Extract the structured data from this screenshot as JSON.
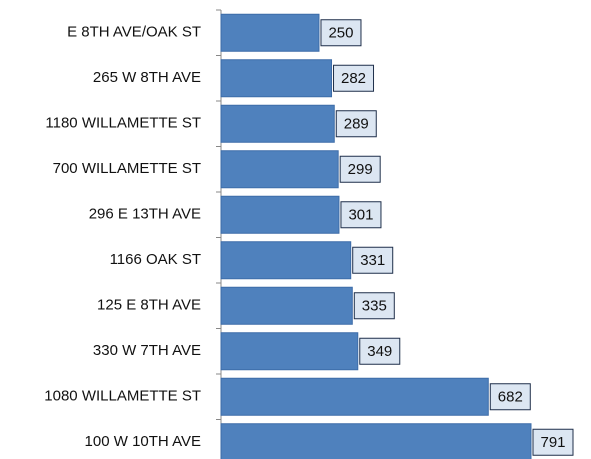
{
  "chart_data": {
    "type": "bar",
    "orientation": "horizontal",
    "categories": [
      "E 8TH AVE/OAK ST",
      "265 W 8TH AVE",
      "1180 WILLAMETTE ST",
      "700 WILLAMETTE ST",
      "296 E 13TH AVE",
      "1166 OAK ST",
      "125 E 8TH AVE",
      "330 W 7TH AVE",
      "1080 WILLAMETTE ST",
      "100 W 10TH AVE"
    ],
    "values": [
      250,
      282,
      289,
      299,
      301,
      331,
      335,
      349,
      682,
      791
    ],
    "color": "#4f81bd",
    "label_box_color": "#dce6f2"
  }
}
